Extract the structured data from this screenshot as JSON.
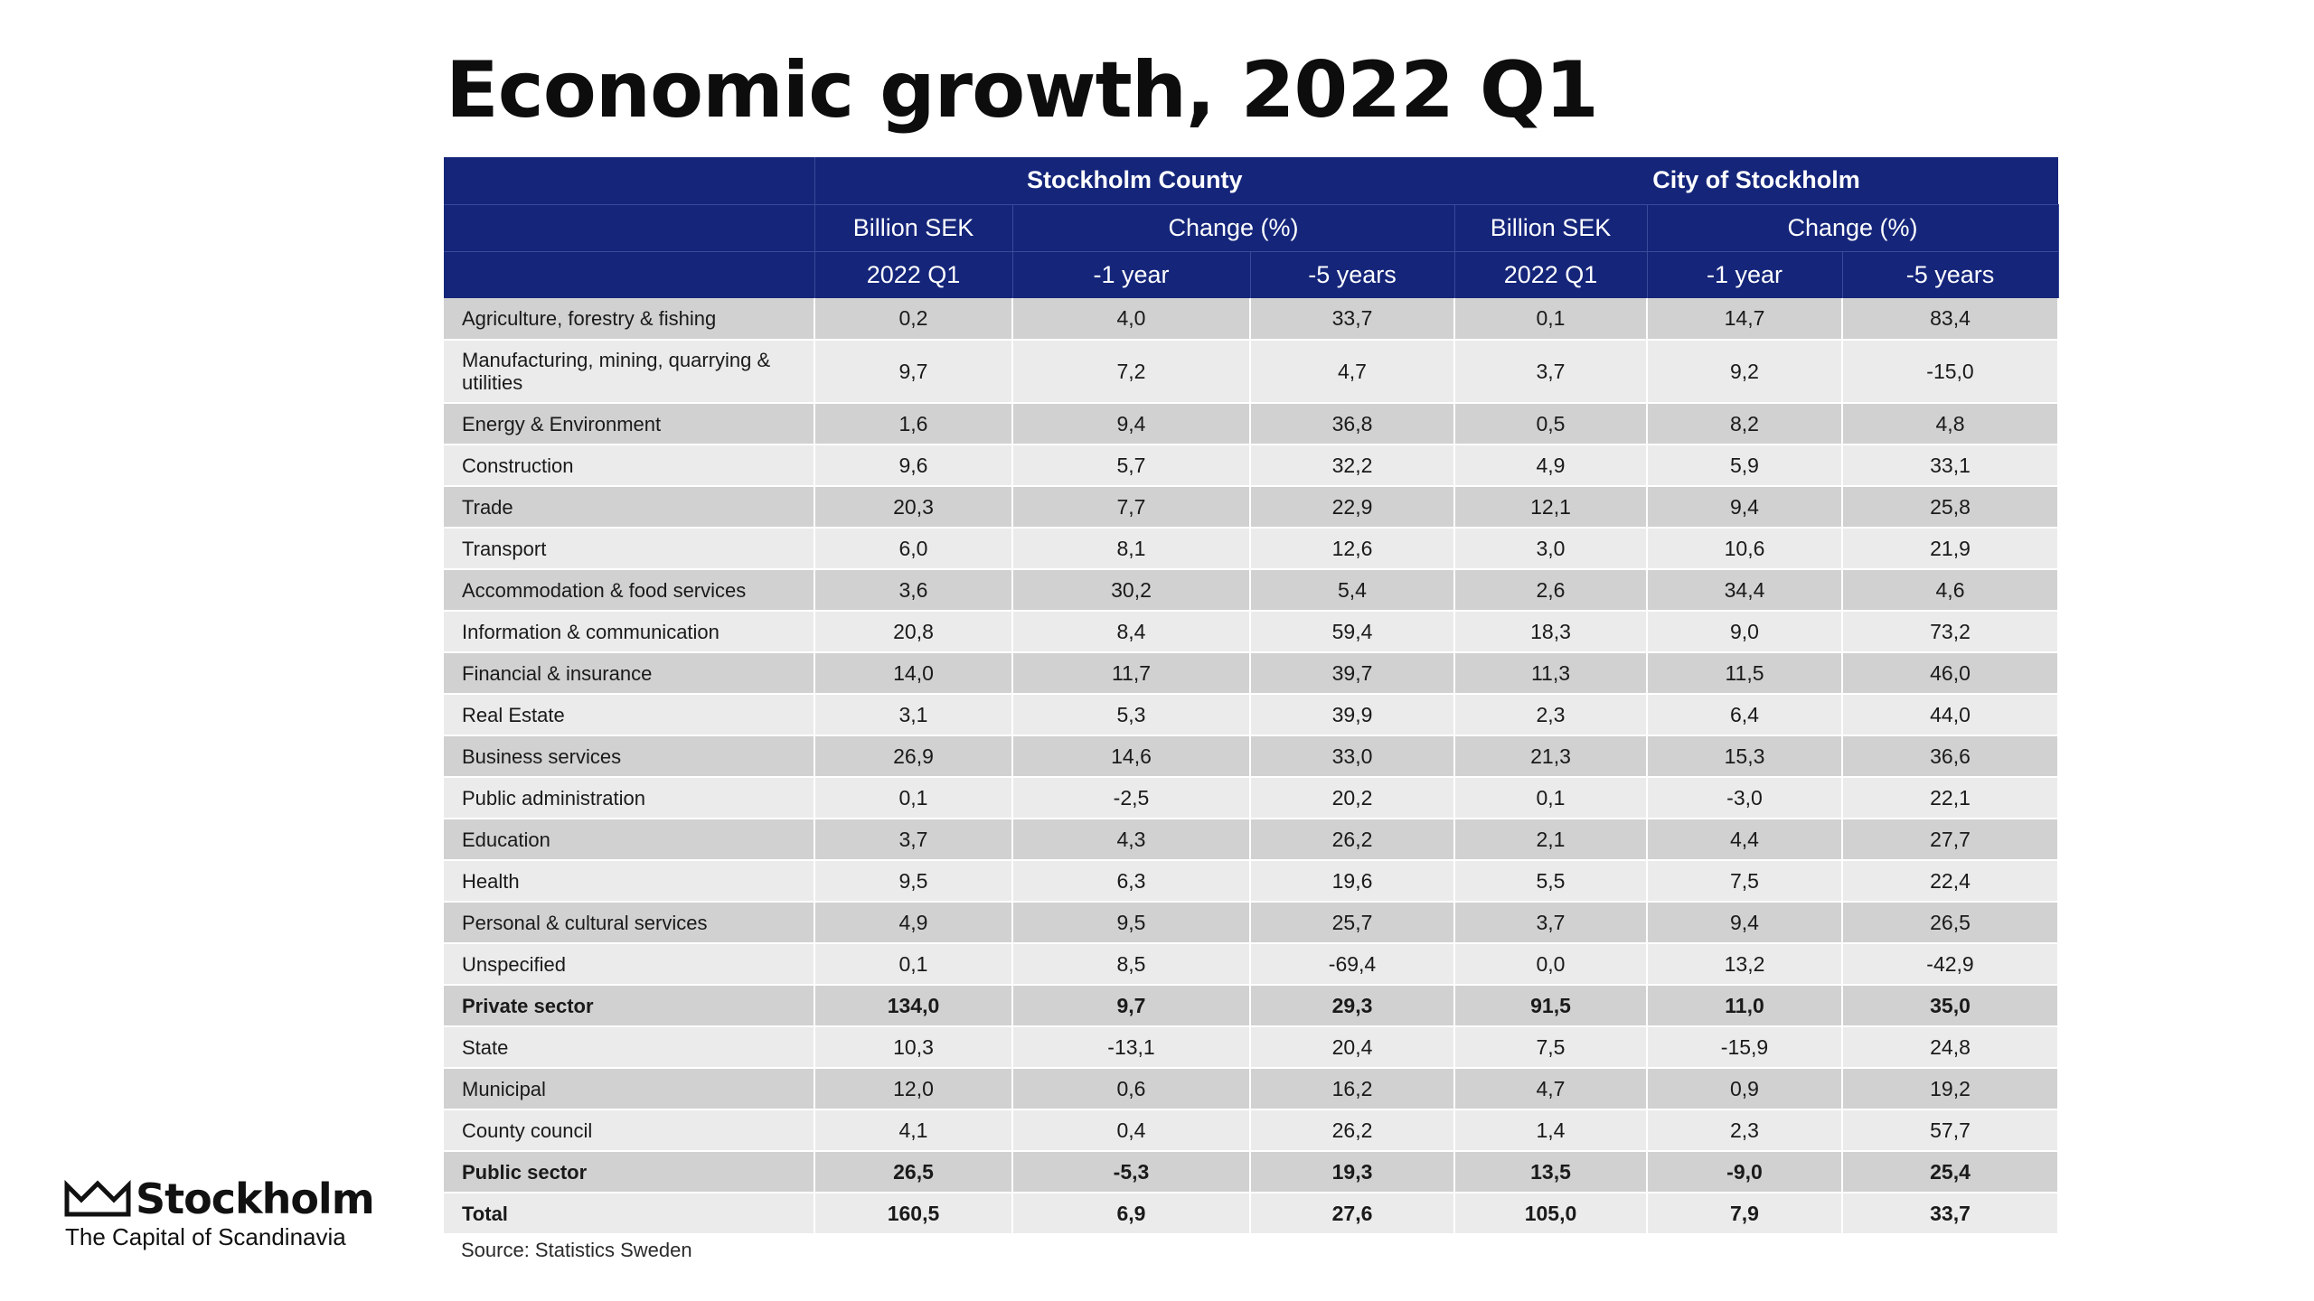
{
  "title": "Economic growth, 2022 Q1",
  "header": {
    "regions": [
      "Stockholm County",
      "City of Stockholm"
    ],
    "units": [
      "Billion SEK",
      "Change (%)",
      "Billion SEK",
      "Change (%)"
    ],
    "periods": [
      "2022 Q1",
      "-1 year",
      "-5 years",
      "2022 Q1",
      "-1 year",
      "-5 years"
    ]
  },
  "rows": [
    {
      "label": "Agriculture, forestry & fishing",
      "values": [
        "0,2",
        "4,0",
        "33,7",
        "0,1",
        "14,7",
        "83,4"
      ]
    },
    {
      "label": "Manufacturing, mining, quarrying & utilities",
      "values": [
        "9,7",
        "7,2",
        "4,7",
        "3,7",
        "9,2",
        "-15,0"
      ]
    },
    {
      "label": "Energy & Environment",
      "values": [
        "1,6",
        "9,4",
        "36,8",
        "0,5",
        "8,2",
        "4,8"
      ]
    },
    {
      "label": "Construction",
      "values": [
        "9,6",
        "5,7",
        "32,2",
        "4,9",
        "5,9",
        "33,1"
      ]
    },
    {
      "label": "Trade",
      "values": [
        "20,3",
        "7,7",
        "22,9",
        "12,1",
        "9,4",
        "25,8"
      ]
    },
    {
      "label": "Transport",
      "values": [
        "6,0",
        "8,1",
        "12,6",
        "3,0",
        "10,6",
        "21,9"
      ]
    },
    {
      "label": "Accommodation & food services",
      "values": [
        "3,6",
        "30,2",
        "5,4",
        "2,6",
        "34,4",
        "4,6"
      ]
    },
    {
      "label": "Information & communication",
      "values": [
        "20,8",
        "8,4",
        "59,4",
        "18,3",
        "9,0",
        "73,2"
      ]
    },
    {
      "label": "Financial & insurance",
      "values": [
        "14,0",
        "11,7",
        "39,7",
        "11,3",
        "11,5",
        "46,0"
      ]
    },
    {
      "label": "Real Estate",
      "values": [
        "3,1",
        "5,3",
        "39,9",
        "2,3",
        "6,4",
        "44,0"
      ]
    },
    {
      "label": "Business services",
      "values": [
        "26,9",
        "14,6",
        "33,0",
        "21,3",
        "15,3",
        "36,6"
      ]
    },
    {
      "label": "Public administration",
      "values": [
        "0,1",
        "-2,5",
        "20,2",
        "0,1",
        "-3,0",
        "22,1"
      ]
    },
    {
      "label": "Education",
      "values": [
        "3,7",
        "4,3",
        "26,2",
        "2,1",
        "4,4",
        "27,7"
      ]
    },
    {
      "label": "Health",
      "values": [
        "9,5",
        "6,3",
        "19,6",
        "5,5",
        "7,5",
        "22,4"
      ]
    },
    {
      "label": "Personal & cultural services",
      "values": [
        "4,9",
        "9,5",
        "25,7",
        "3,7",
        "9,4",
        "26,5"
      ]
    },
    {
      "label": "Unspecified",
      "values": [
        "0,1",
        "8,5",
        "-69,4",
        "0,0",
        "13,2",
        "-42,9"
      ]
    },
    {
      "label": "Private sector",
      "values": [
        "134,0",
        "9,7",
        "29,3",
        "91,5",
        "11,0",
        "35,0"
      ]
    },
    {
      "label": "State",
      "values": [
        "10,3",
        "-13,1",
        "20,4",
        "7,5",
        "-15,9",
        "24,8"
      ]
    },
    {
      "label": "Municipal",
      "values": [
        "12,0",
        "0,6",
        "16,2",
        "4,7",
        "0,9",
        "19,2"
      ]
    },
    {
      "label": "County council",
      "values": [
        "4,1",
        "0,4",
        "26,2",
        "1,4",
        "2,3",
        "57,7"
      ]
    },
    {
      "label": "Public sector",
      "values": [
        "26,5",
        "-5,3",
        "19,3",
        "13,5",
        "-9,0",
        "25,4"
      ]
    },
    {
      "label": "Total",
      "values": [
        "160,5",
        "6,9",
        "27,6",
        "105,0",
        "7,9",
        "33,7"
      ]
    }
  ],
  "source": "Source: Statistics Sweden",
  "logo": {
    "name": "Stockholm",
    "tagline": "The Capital of Scandinavia",
    "icon": "crown-icon"
  }
}
